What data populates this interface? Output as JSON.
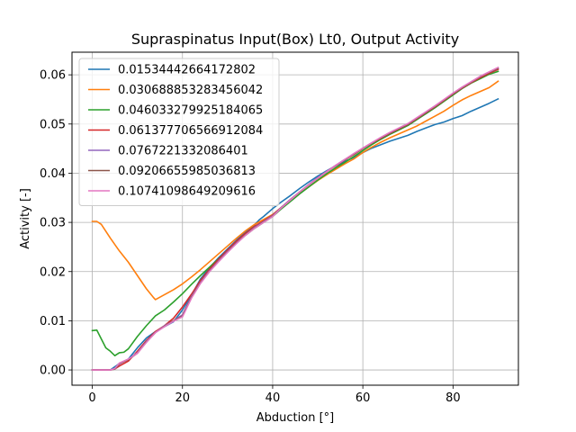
{
  "chart_data": {
    "type": "line",
    "title": "Supraspinatus Input(Box) Lt0, Output Activity",
    "xlabel": "Abduction [°]",
    "ylabel": "Activity [-]",
    "xlim": [
      -4.5,
      94.5
    ],
    "ylim": [
      -0.0031,
      0.0646
    ],
    "xticks": [
      0,
      20,
      40,
      60,
      80
    ],
    "yticks": [
      0.0,
      0.01,
      0.02,
      0.03,
      0.04,
      0.05,
      0.06
    ],
    "xtick_labels": [
      "0",
      "20",
      "40",
      "60",
      "80"
    ],
    "ytick_labels": [
      "0.00",
      "0.01",
      "0.02",
      "0.03",
      "0.04",
      "0.05",
      "0.06"
    ],
    "grid": true,
    "legend_position": "upper-left",
    "series": [
      {
        "name": "0.01534442664172802",
        "color": "#1f77b4",
        "x": [
          0,
          2,
          4,
          6,
          8,
          10,
          12,
          14,
          16,
          18,
          20,
          22,
          24,
          26,
          28,
          30,
          32,
          34,
          36,
          37,
          38,
          40,
          42,
          44,
          46,
          48,
          50,
          52,
          54,
          56,
          58,
          60,
          62,
          64,
          66,
          68,
          70,
          72,
          74,
          76,
          78,
          80,
          82,
          84,
          86,
          88,
          90
        ],
        "y": [
          0.0,
          0.0,
          0.0,
          0.0013,
          0.0022,
          0.0045,
          0.0065,
          0.0078,
          0.0088,
          0.0098,
          0.0122,
          0.0152,
          0.0185,
          0.0208,
          0.0228,
          0.0246,
          0.0264,
          0.028,
          0.0295,
          0.0305,
          0.0312,
          0.0328,
          0.0342,
          0.0355,
          0.0369,
          0.0382,
          0.0394,
          0.0405,
          0.0415,
          0.0424,
          0.0432,
          0.0442,
          0.0451,
          0.0458,
          0.0465,
          0.0471,
          0.0477,
          0.0485,
          0.0492,
          0.0499,
          0.0504,
          0.0511,
          0.0517,
          0.0526,
          0.0534,
          0.0542,
          0.0551
        ]
      },
      {
        "name": "0.030688853283456042",
        "color": "#ff7f0e",
        "x": [
          0,
          1,
          2,
          4,
          6,
          8,
          10,
          12,
          13.5,
          14,
          16,
          18,
          20,
          22,
          24,
          26,
          28,
          30,
          32,
          34,
          36,
          38,
          40,
          42,
          44,
          46,
          48,
          50,
          52,
          54,
          56,
          58,
          60,
          62,
          64,
          66,
          68,
          70,
          72,
          74,
          76,
          78,
          80,
          82,
          84,
          86,
          88,
          90
        ],
        "y": [
          0.0302,
          0.0302,
          0.0296,
          0.0268,
          0.0242,
          0.0219,
          0.0192,
          0.0165,
          0.0148,
          0.0143,
          0.0153,
          0.0163,
          0.0175,
          0.0189,
          0.0204,
          0.022,
          0.0236,
          0.0252,
          0.0268,
          0.0283,
          0.0296,
          0.0306,
          0.0316,
          0.0331,
          0.0345,
          0.0359,
          0.0372,
          0.0385,
          0.0397,
          0.0408,
          0.0419,
          0.0429,
          0.0442,
          0.0453,
          0.0463,
          0.0472,
          0.048,
          0.0488,
          0.0496,
          0.0506,
          0.0516,
          0.0526,
          0.0538,
          0.0549,
          0.0558,
          0.0566,
          0.0574,
          0.0587
        ]
      },
      {
        "name": "0.046033279925184065",
        "color": "#2ca02c",
        "x": [
          0,
          1,
          2,
          3,
          4,
          5,
          6,
          7,
          8,
          10,
          12,
          14,
          16,
          18,
          20,
          22,
          24,
          26,
          28,
          30,
          32,
          34,
          36,
          38,
          40,
          42,
          44,
          46,
          48,
          50,
          52,
          54,
          56,
          58,
          60,
          62,
          64,
          66,
          68,
          70,
          72,
          74,
          76,
          78,
          80,
          82,
          84,
          86,
          88,
          90
        ],
        "y": [
          0.008,
          0.0081,
          0.0063,
          0.0045,
          0.0038,
          0.0029,
          0.0035,
          0.0036,
          0.0043,
          0.0068,
          0.009,
          0.011,
          0.0122,
          0.0138,
          0.0155,
          0.0174,
          0.0192,
          0.0209,
          0.0226,
          0.0243,
          0.0259,
          0.0274,
          0.0288,
          0.03,
          0.0312,
          0.0328,
          0.0343,
          0.0358,
          0.0372,
          0.0386,
          0.0399,
          0.0411,
          0.0422,
          0.0434,
          0.0446,
          0.0458,
          0.0469,
          0.0479,
          0.0488,
          0.0497,
          0.0509,
          0.0521,
          0.0533,
          0.0546,
          0.0559,
          0.0572,
          0.0583,
          0.0592,
          0.0601,
          0.0607
        ]
      },
      {
        "name": "0.061377706566912084",
        "color": "#d62728",
        "x": [
          0,
          2,
          4,
          5,
          6,
          8,
          10,
          12,
          14,
          16,
          18,
          20,
          22,
          24,
          26,
          28,
          30,
          32,
          34,
          36,
          38,
          40,
          42,
          44,
          46,
          48,
          50,
          52,
          54,
          56,
          58,
          60,
          62,
          64,
          66,
          68,
          70,
          72,
          74,
          76,
          78,
          80,
          82,
          84,
          86,
          88,
          90
        ],
        "y": [
          0.0,
          0.0,
          0.0,
          0.0002,
          0.0008,
          0.0018,
          0.0038,
          0.006,
          0.0078,
          0.009,
          0.0105,
          0.0128,
          0.0154,
          0.0182,
          0.0205,
          0.0225,
          0.0244,
          0.0262,
          0.0278,
          0.0292,
          0.0303,
          0.0315,
          0.0331,
          0.0347,
          0.0362,
          0.0376,
          0.039,
          0.0403,
          0.0415,
          0.0427,
          0.0438,
          0.045,
          0.0461,
          0.0471,
          0.0481,
          0.049,
          0.0499,
          0.0511,
          0.0523,
          0.0535,
          0.0548,
          0.0561,
          0.0573,
          0.0584,
          0.0594,
          0.0603,
          0.0611
        ]
      },
      {
        "name": "0.0767221332086401",
        "color": "#9467bd",
        "x": [
          0,
          2,
          4,
          5,
          6,
          8,
          10,
          12,
          14,
          16,
          18,
          20,
          22,
          24,
          26,
          28,
          30,
          32,
          34,
          36,
          38,
          40,
          42,
          44,
          46,
          48,
          50,
          52,
          54,
          56,
          58,
          60,
          62,
          64,
          66,
          68,
          70,
          72,
          74,
          76,
          78,
          80,
          82,
          84,
          86,
          88,
          90
        ],
        "y": [
          0.0,
          0.0,
          0.0,
          0.0002,
          0.0012,
          0.0022,
          0.0035,
          0.0058,
          0.0076,
          0.009,
          0.01,
          0.0112,
          0.015,
          0.0178,
          0.0202,
          0.0222,
          0.0241,
          0.0259,
          0.0275,
          0.029,
          0.0302,
          0.0314,
          0.0331,
          0.0347,
          0.0362,
          0.0377,
          0.0391,
          0.0404,
          0.0416,
          0.0428,
          0.0439,
          0.0451,
          0.0462,
          0.0472,
          0.0482,
          0.0491,
          0.05,
          0.0512,
          0.0524,
          0.0536,
          0.0549,
          0.0562,
          0.0574,
          0.0585,
          0.0596,
          0.0605,
          0.0613
        ]
      },
      {
        "name": "0.09206655985036813",
        "color": "#8c564b",
        "x": [
          0,
          2,
          4,
          5,
          6,
          8,
          10,
          12,
          14,
          16,
          18,
          20,
          22,
          24,
          26,
          28,
          30,
          32,
          34,
          36,
          38,
          40,
          42,
          44,
          46,
          48,
          50,
          52,
          54,
          56,
          58,
          60,
          62,
          64,
          66,
          68,
          70,
          72,
          74,
          76,
          78,
          80,
          82,
          84,
          86,
          88,
          90
        ],
        "y": [
          0.0,
          0.0,
          0.0,
          0.0002,
          0.0013,
          0.0021,
          0.0034,
          0.0057,
          0.0076,
          0.0089,
          0.01,
          0.011,
          0.0148,
          0.0177,
          0.0201,
          0.0221,
          0.024,
          0.0258,
          0.0275,
          0.0289,
          0.0301,
          0.0313,
          0.033,
          0.0346,
          0.0362,
          0.0376,
          0.039,
          0.0403,
          0.0416,
          0.0427,
          0.0439,
          0.045,
          0.0461,
          0.0472,
          0.0482,
          0.0491,
          0.05,
          0.0512,
          0.0524,
          0.0536,
          0.0549,
          0.0562,
          0.0574,
          0.0585,
          0.0596,
          0.0605,
          0.0613
        ]
      },
      {
        "name": "0.10741098649209616",
        "color": "#e377c2",
        "x": [
          0,
          2,
          4,
          5,
          6,
          8,
          10,
          12,
          14,
          16,
          18,
          20,
          22,
          24,
          26,
          28,
          30,
          32,
          34,
          36,
          38,
          40,
          42,
          44,
          46,
          48,
          50,
          52,
          54,
          56,
          58,
          60,
          62,
          64,
          66,
          68,
          70,
          72,
          74,
          76,
          78,
          80,
          82,
          84,
          86,
          88,
          90
        ],
        "y": [
          0.0,
          0.0,
          0.0,
          0.0003,
          0.0014,
          0.0022,
          0.0034,
          0.0056,
          0.0076,
          0.0088,
          0.0099,
          0.0108,
          0.0146,
          0.0176,
          0.02,
          0.022,
          0.0239,
          0.0257,
          0.0274,
          0.0288,
          0.03,
          0.0312,
          0.033,
          0.0346,
          0.0362,
          0.0376,
          0.039,
          0.0403,
          0.0416,
          0.0428,
          0.044,
          0.0451,
          0.0462,
          0.0473,
          0.0483,
          0.0492,
          0.0501,
          0.0513,
          0.0525,
          0.0537,
          0.055,
          0.0563,
          0.0575,
          0.0586,
          0.0597,
          0.0606,
          0.0615
        ]
      }
    ]
  }
}
